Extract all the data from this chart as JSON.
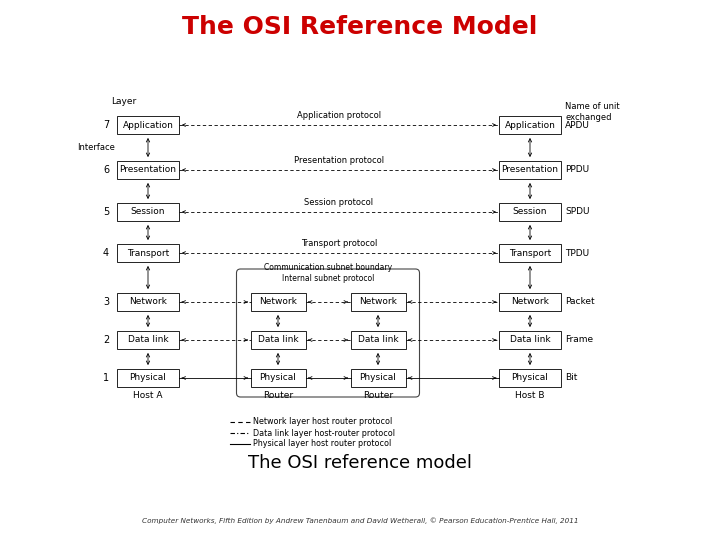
{
  "title": "The OSI Reference Model",
  "subtitle": "The OSI reference model",
  "caption": "Computer Networks, Fifth Edition by Andrew Tanenbaum and David Wetherall, © Pearson Education-Prentice Hall, 2011",
  "title_color": "#cc0000",
  "bg_color": "#ffffff",
  "layer_numbers": [
    7,
    6,
    5,
    4,
    3,
    2,
    1
  ],
  "layer_names": [
    "Application",
    "Presentation",
    "Session",
    "Transport",
    "Network",
    "Data link",
    "Physical"
  ],
  "layer_units": [
    "APDU",
    "PPDU",
    "SPDU",
    "TPDU",
    "Packet",
    "Frame",
    "Bit"
  ],
  "host_a_label": "Host A",
  "host_b_label": "Host B",
  "router1_label": "Router",
  "router2_label": "Router",
  "layer_label": "Layer",
  "name_unit_label": "Name of unit\nexchanged",
  "interface_label": "Interface",
  "comm_subnet_label": "Communication subnet boundary",
  "internal_subnet_label": "Internal subnet protocol",
  "protocols": [
    "Application protocol",
    "Presentation protocol",
    "Session protocol",
    "Transport protocol"
  ],
  "protocol_layers": [
    7,
    6,
    5,
    4
  ],
  "legend_items": [
    {
      "style": "dashed",
      "label": "Network layer host router protocol"
    },
    {
      "style": "dashdot",
      "label": "Data link layer host-router protocol"
    },
    {
      "style": "solid",
      "label": "Physical layer host router protocol"
    }
  ]
}
